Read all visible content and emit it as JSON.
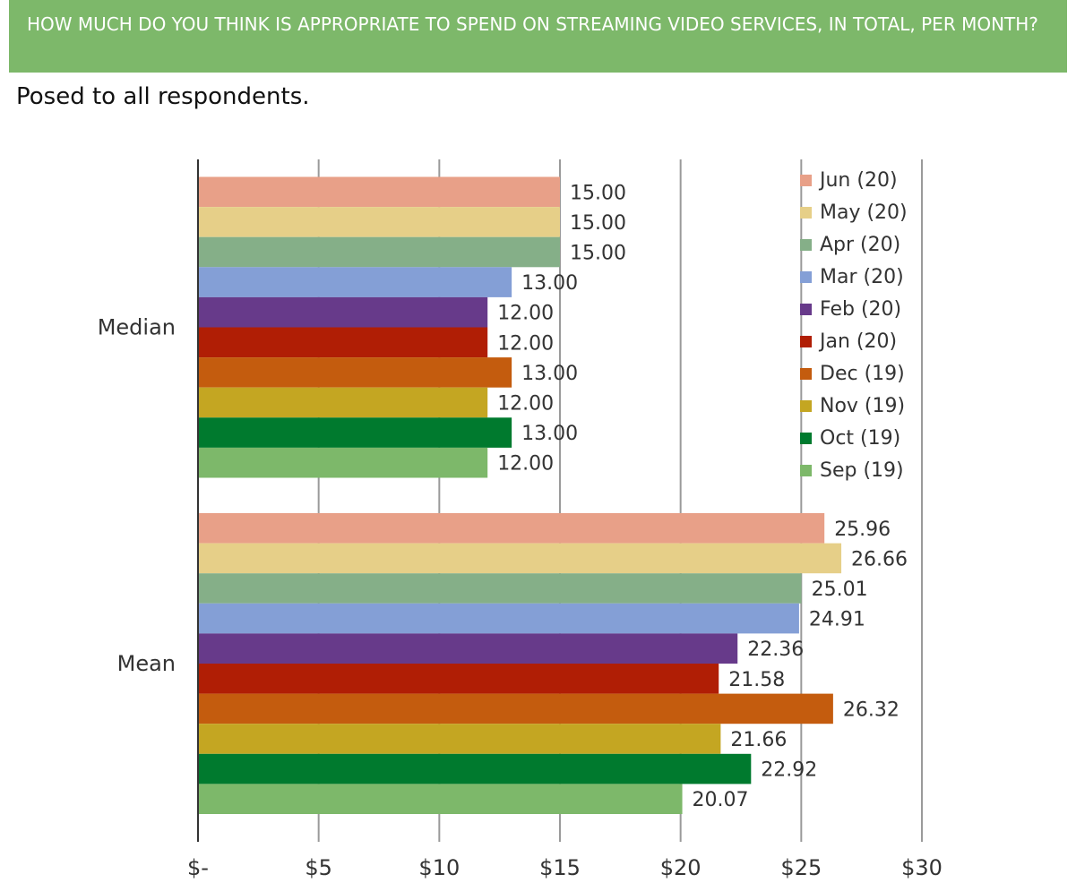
{
  "header": {
    "title": "HOW MUCH DO YOU THINK IS APPROPRIATE TO SPEND ON STREAMING VIDEO SERVICES, IN TOTAL, PER MONTH?",
    "subtitle": "Posed to all respondents."
  },
  "chart_data": {
    "type": "bar",
    "orientation": "horizontal",
    "categories": [
      "Median",
      "Mean"
    ],
    "series": [
      {
        "name": "Jun (20)",
        "color": "#e8a088",
        "values": [
          15.0,
          25.96
        ]
      },
      {
        "name": "May (20)",
        "color": "#e6cf88",
        "values": [
          15.0,
          26.66
        ]
      },
      {
        "name": "Apr (20)",
        "color": "#85af88",
        "values": [
          15.0,
          25.01
        ]
      },
      {
        "name": "Mar (20)",
        "color": "#849fd6",
        "values": [
          13.0,
          24.91
        ]
      },
      {
        "name": "Feb (20)",
        "color": "#673a8a",
        "values": [
          12.0,
          22.36
        ]
      },
      {
        "name": "Jan (20)",
        "color": "#b01e05",
        "values": [
          12.0,
          21.58
        ]
      },
      {
        "name": "Dec (19)",
        "color": "#c45c0e",
        "values": [
          13.0,
          26.32
        ]
      },
      {
        "name": "Nov (19)",
        "color": "#c4a622",
        "values": [
          12.0,
          21.66
        ]
      },
      {
        "name": "Oct (19)",
        "color": "#007a2e",
        "values": [
          13.0,
          22.92
        ]
      },
      {
        "name": "Sep (19)",
        "color": "#7db86a",
        "values": [
          12.0,
          20.07
        ]
      }
    ],
    "xlim": [
      0,
      30
    ],
    "xticks": [
      0,
      5,
      10,
      15,
      20,
      25,
      30
    ],
    "xtick_labels": [
      "$-",
      "$5",
      "$10",
      "$15",
      "$20",
      "$25",
      "$30"
    ],
    "grid": "vertical",
    "legend_position": "top-right",
    "value_format": "2 decimals"
  }
}
